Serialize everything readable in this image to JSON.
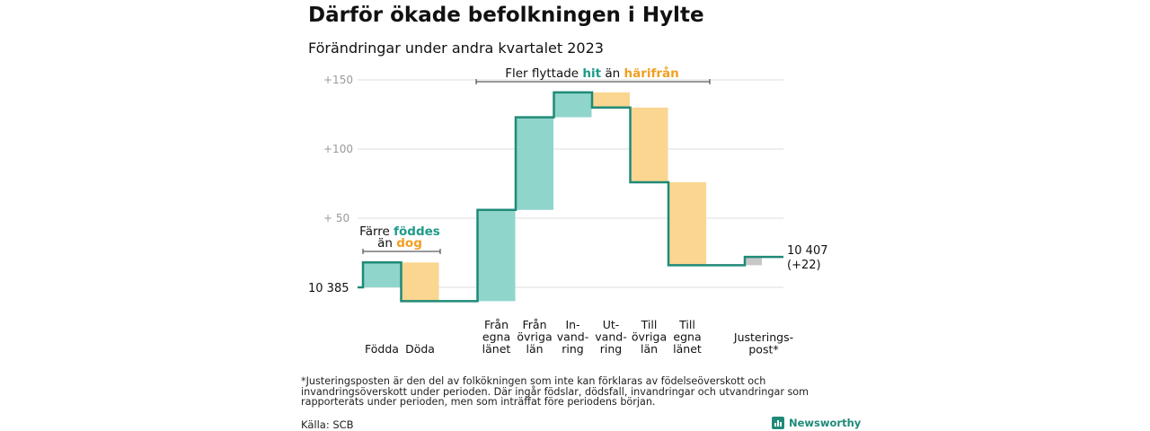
{
  "title": "Därför ökade befolkningen i Hylte",
  "subtitle": "Förändringar under andra kvartalet 2023",
  "colors": {
    "positive": "#8fd5cb",
    "negative": "#fad690",
    "adjustment": "#c7c7c7",
    "line": "#1f8a78",
    "accent_teal": "#1f9a8a",
    "accent_orange": "#f0a020"
  },
  "annotations": {
    "births_deaths": {
      "line1": "Färre",
      "teal": "föddes",
      "line2": "än",
      "orange": "dog"
    },
    "migration": {
      "before": "Fler flyttade",
      "teal": "hit",
      "middle": "än",
      "orange": "härifrån"
    }
  },
  "chart_data": {
    "type": "waterfall",
    "y_ticks": [
      {
        "value": 150,
        "label": "+150"
      },
      {
        "value": 100,
        "label": "+100"
      },
      {
        "value": 50,
        "label": "+  50"
      }
    ],
    "start": {
      "label": "10  385",
      "value": 10385
    },
    "end": {
      "label": "10 407",
      "change": "(+22)",
      "value": 10407
    },
    "grid": true,
    "steps": [
      {
        "label": "Födda",
        "lines": [
          "Födda"
        ],
        "from": 0,
        "to": 18,
        "kind": "positive"
      },
      {
        "label": "Döda",
        "lines": [
          "Döda"
        ],
        "from": 18,
        "to": -10,
        "kind": "negative"
      },
      {
        "label": "Från egna länet",
        "lines": [
          "Från",
          "egna",
          "länet"
        ],
        "from": -10,
        "to": 56,
        "kind": "positive"
      },
      {
        "label": "Från övriga län",
        "lines": [
          "Från",
          "övriga",
          "län"
        ],
        "from": 56,
        "to": 123,
        "kind": "positive"
      },
      {
        "label": "In-vandring",
        "lines": [
          "In-",
          "vand-",
          "ring"
        ],
        "from": 123,
        "to": 141,
        "kind": "positive"
      },
      {
        "label": "Ut-vandring",
        "lines": [
          "Ut-",
          "vand-",
          "ring"
        ],
        "from": 141,
        "to": 130,
        "kind": "negative"
      },
      {
        "label": "Till övriga län",
        "lines": [
          "Till",
          "övriga",
          "län"
        ],
        "from": 130,
        "to": 76,
        "kind": "negative"
      },
      {
        "label": "Till egna länet",
        "lines": [
          "Till",
          "egna",
          "länet"
        ],
        "from": 76,
        "to": 16,
        "kind": "negative"
      },
      {
        "label": "Justerings-post*",
        "lines": [
          "Justerings-",
          "post*"
        ],
        "from": 16,
        "to": 22,
        "kind": "adjustment"
      }
    ]
  },
  "footnote": "*Justeringsposten är den del av folkökningen som inte kan förklaras av födelseöverskott och invandringsöverskott under perioden. Där ingår födslar, dödsfall, invandringar och utvandringar som rapporterats under perioden, men som inträffat före periodens början.",
  "source": "Källa: SCB",
  "logo_text": "Newsworthy"
}
